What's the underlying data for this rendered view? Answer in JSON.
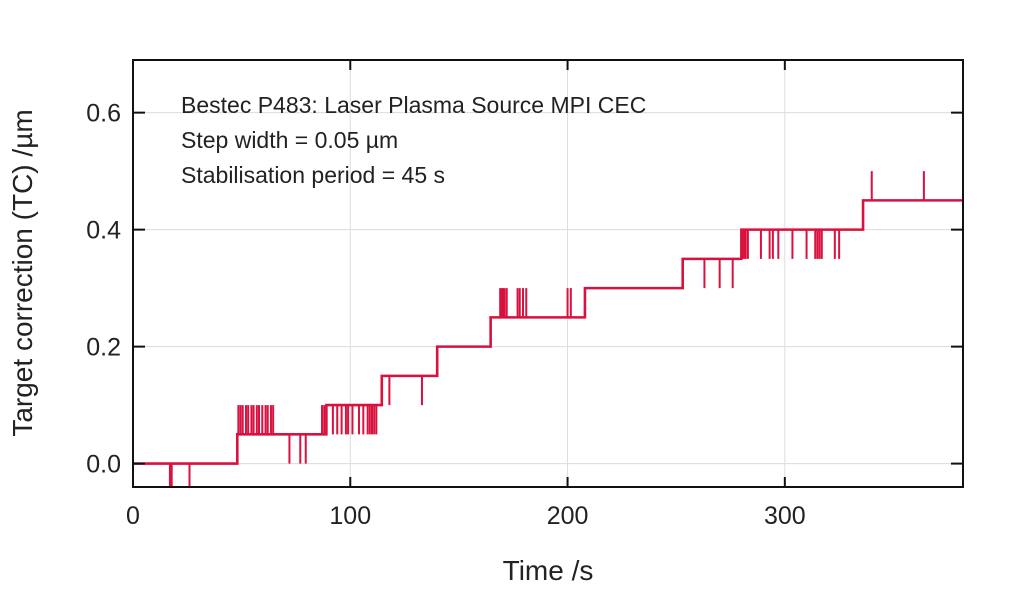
{
  "chart_data": {
    "type": "line",
    "step": true,
    "annotation": [
      "Bestec P483: Laser Plasma Source MPI CEC",
      "Step width = 0.05 µm",
      "Stabilisation period = 45 s"
    ],
    "xlabel": "Time /s",
    "ylabel": "Target correction (TC) /µm",
    "xlim": [
      0,
      382
    ],
    "ylim": [
      -0.04,
      0.69
    ],
    "xticks": [
      0,
      100,
      200,
      300
    ],
    "xtick_labels": [
      "0",
      "100",
      "200",
      "300"
    ],
    "yticks": [
      0.0,
      0.2,
      0.4,
      0.6
    ],
    "ytick_labels": [
      "0.0",
      "0.2",
      "0.4",
      "0.6"
    ],
    "grid": true,
    "line_color": "#d9113f",
    "steps": [
      [
        0,
        0
      ],
      [
        48,
        0.05
      ],
      [
        89,
        0.1
      ],
      [
        114.5,
        0.15
      ],
      [
        140,
        0.2
      ],
      [
        164.6,
        0.25
      ],
      [
        208,
        0.3
      ],
      [
        253,
        0.35
      ],
      [
        280,
        0.4
      ],
      [
        336,
        0.45
      ],
      [
        382,
        0.45
      ]
    ],
    "excursions": [
      [
        17,
        -0.04
      ],
      [
        17.8,
        -0.04
      ],
      [
        26,
        -0.04
      ],
      [
        48.5,
        0.1
      ],
      [
        49.5,
        0.1
      ],
      [
        50.5,
        0.1
      ],
      [
        52,
        0.1
      ],
      [
        53,
        0.1
      ],
      [
        54.5,
        0.1
      ],
      [
        55.5,
        0.1
      ],
      [
        57,
        0.1
      ],
      [
        58,
        0.1
      ],
      [
        59.5,
        0.1
      ],
      [
        61,
        0.1
      ],
      [
        62,
        0.1
      ],
      [
        63.5,
        0.1
      ],
      [
        64.5,
        0.1
      ],
      [
        72,
        0
      ],
      [
        77,
        0
      ],
      [
        79.5,
        0
      ],
      [
        87,
        0.1
      ],
      [
        88,
        0.1
      ],
      [
        92,
        0.05
      ],
      [
        94,
        0.05
      ],
      [
        96,
        0.05
      ],
      [
        98,
        0.05
      ],
      [
        99,
        0.05
      ],
      [
        101,
        0.05
      ],
      [
        104,
        0.05
      ],
      [
        106,
        0.05
      ],
      [
        108,
        0.05
      ],
      [
        109,
        0.05
      ],
      [
        110,
        0.05
      ],
      [
        111,
        0.05
      ],
      [
        112,
        0.05
      ],
      [
        118,
        0.1
      ],
      [
        133,
        0.1
      ],
      [
        169,
        0.3
      ],
      [
        169.7,
        0.3
      ],
      [
        170.3,
        0.3
      ],
      [
        171,
        0.3
      ],
      [
        172,
        0.3
      ],
      [
        177,
        0.3
      ],
      [
        178,
        0.3
      ],
      [
        179.5,
        0.3
      ],
      [
        181,
        0.3
      ],
      [
        200,
        0.3
      ],
      [
        201.5,
        0.3
      ],
      [
        263,
        0.3
      ],
      [
        270,
        0.3
      ],
      [
        276,
        0.3
      ],
      [
        280.5,
        0.35
      ],
      [
        281.3,
        0.35
      ],
      [
        282,
        0.35
      ],
      [
        283,
        0.35
      ],
      [
        289,
        0.35
      ],
      [
        293,
        0.35
      ],
      [
        294.5,
        0.35
      ],
      [
        297,
        0.35
      ],
      [
        303.5,
        0.35
      ],
      [
        310,
        0.35
      ],
      [
        314,
        0.35
      ],
      [
        315,
        0.35
      ],
      [
        316,
        0.35
      ],
      [
        317,
        0.35
      ],
      [
        323,
        0.35
      ],
      [
        325,
        0.35
      ],
      [
        340,
        0.5
      ],
      [
        364,
        0.5
      ]
    ]
  }
}
